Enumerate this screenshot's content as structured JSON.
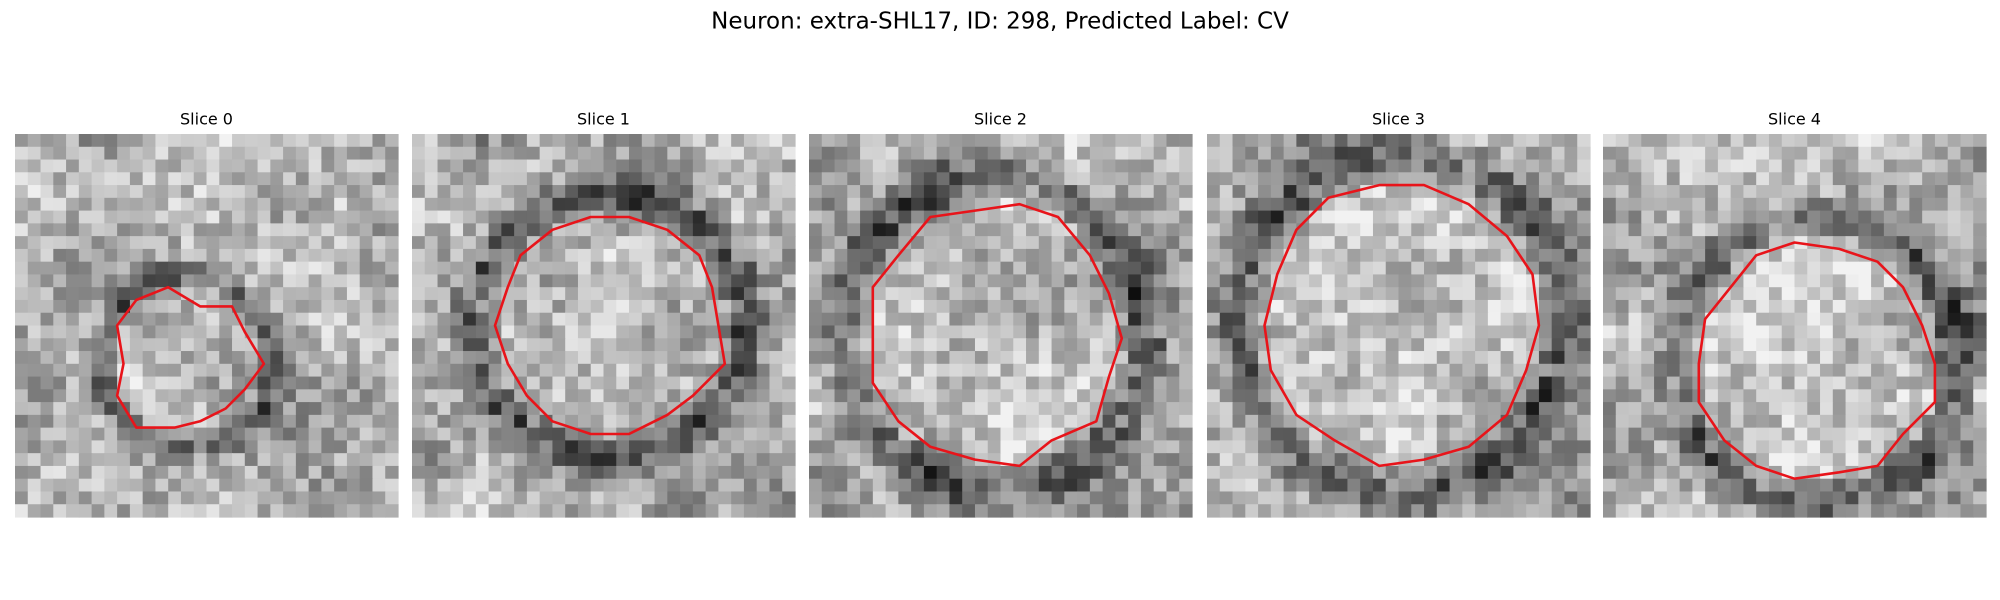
{
  "title": "Neuron: extra-SHL17, ID: 298, Predicted Label: CV",
  "panels": [
    {
      "title": "Slice 0"
    },
    {
      "title": "Slice 1"
    },
    {
      "title": "Slice 2"
    },
    {
      "title": "Slice 3"
    },
    {
      "title": "Slice 4"
    }
  ]
}
